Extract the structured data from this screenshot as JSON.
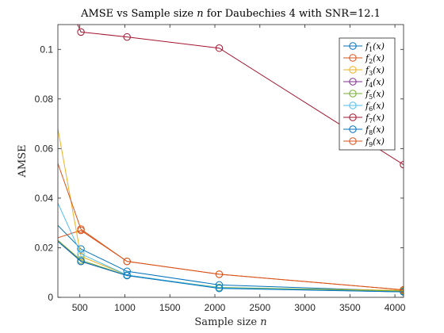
{
  "chart_data": {
    "type": "line",
    "title_prefix": "AMSE vs Sample size ",
    "title_var": "n",
    "title_suffix": " for Daubechies 4 with SNR=12.1",
    "xlabel_prefix": "Sample size ",
    "xlabel_var": "n",
    "ylabel": "AMSE",
    "x": [
      256,
      512,
      1024,
      2048,
      4096
    ],
    "xlim": [
      256,
      4096
    ],
    "ylim": [
      0,
      0.11
    ],
    "xticks": [
      "500",
      "1000",
      "1500",
      "2000",
      "2500",
      "3000",
      "3500",
      "4000"
    ],
    "xtick_values": [
      500,
      1000,
      1500,
      2000,
      2500,
      3000,
      3500,
      4000
    ],
    "yticks": [
      "0",
      "0.02",
      "0.04",
      "0.06",
      "0.08",
      "0.1"
    ],
    "ytick_values": [
      0,
      0.02,
      0.04,
      0.06,
      0.08,
      0.1
    ],
    "legend_position": "top-right",
    "grid": false,
    "series": [
      {
        "name": "f1(x)",
        "name_base": "f",
        "name_sub": "1",
        "name_arg": "(x)",
        "color": "#0072BD",
        "values": [
          0.029,
          0.0195,
          0.0105,
          0.005,
          0.0025
        ]
      },
      {
        "name": "f2(x)",
        "name_base": "f",
        "name_sub": "2",
        "name_arg": "(x)",
        "color": "#D95319",
        "values": [
          0.024,
          0.027,
          0.0145,
          0.0093,
          0.003
        ]
      },
      {
        "name": "f3(x)",
        "name_base": "f",
        "name_sub": "3",
        "name_arg": "(x)",
        "color": "#EDB120",
        "values": [
          0.068,
          0.0165,
          0.009,
          0.0038,
          0.0028
        ]
      },
      {
        "name": "f4(x)",
        "name_base": "f",
        "name_sub": "4",
        "name_arg": "(x)",
        "color": "#7E2F8E",
        "values": [
          0.023,
          0.0145,
          0.0088,
          0.0038,
          0.0022
        ]
      },
      {
        "name": "f5(x)",
        "name_base": "f",
        "name_sub": "5",
        "name_arg": "(x)",
        "color": "#77AC30",
        "values": [
          0.023,
          0.015,
          0.0088,
          0.004,
          0.0025
        ]
      },
      {
        "name": "f6(x)",
        "name_base": "f",
        "name_sub": "6",
        "name_arg": "(x)",
        "color": "#4DBEEE",
        "values": [
          0.038,
          0.0175,
          0.009,
          0.0038,
          0.0022
        ]
      },
      {
        "name": "f7(x)",
        "name_base": "f",
        "name_sub": "7",
        "name_arg": "(x)",
        "color": "#A2142F",
        "values": [
          0.128,
          0.107,
          0.105,
          0.1005,
          0.0535
        ]
      },
      {
        "name": "f8(x)",
        "name_base": "f",
        "name_sub": "8",
        "name_arg": "(x)",
        "color": "#0072BD",
        "values": [
          0.0225,
          0.0145,
          0.0088,
          0.0036,
          0.0022
        ]
      },
      {
        "name": "f9(x)",
        "name_base": "f",
        "name_sub": "9",
        "name_arg": "(x)",
        "color": "#D95319",
        "values": [
          0.054,
          0.0275,
          0.0145,
          0.0093,
          0.003
        ]
      }
    ]
  }
}
